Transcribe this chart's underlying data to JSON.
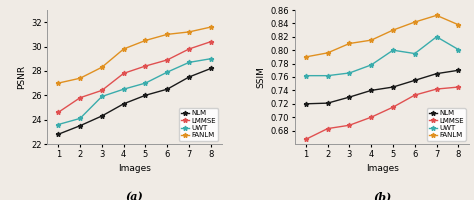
{
  "x": [
    1,
    2,
    3,
    4,
    5,
    6,
    7,
    8
  ],
  "psnr": {
    "NLM": [
      22.8,
      23.5,
      24.3,
      25.3,
      26.0,
      26.5,
      27.5,
      28.2
    ],
    "LMMSE": [
      24.6,
      25.8,
      26.4,
      27.8,
      28.4,
      28.9,
      29.8,
      30.4
    ],
    "UWT": [
      23.6,
      24.1,
      25.9,
      26.5,
      27.0,
      27.9,
      28.7,
      29.0
    ],
    "FANLM": [
      27.0,
      27.4,
      28.3,
      29.8,
      30.5,
      31.0,
      31.2,
      31.6
    ]
  },
  "ssim": {
    "NLM": [
      0.72,
      0.721,
      0.73,
      0.74,
      0.745,
      0.755,
      0.765,
      0.77
    ],
    "LMMSE": [
      0.667,
      0.683,
      0.688,
      0.7,
      0.715,
      0.733,
      0.742,
      0.745
    ],
    "UWT": [
      0.762,
      0.762,
      0.766,
      0.778,
      0.8,
      0.795,
      0.82,
      0.801
    ],
    "FANLM": [
      0.79,
      0.796,
      0.81,
      0.815,
      0.83,
      0.842,
      0.852,
      0.838
    ]
  },
  "colors": {
    "NLM": "#1a1a1a",
    "LMMSE": "#e05050",
    "UWT": "#3aacac",
    "FANLM": "#e09020"
  },
  "marker": "*",
  "psnr_ylim": [
    22,
    33
  ],
  "psnr_yticks": [
    22,
    24,
    26,
    28,
    30,
    32
  ],
  "ssim_ylim": [
    0.66,
    0.86
  ],
  "ssim_yticks": [
    0.68,
    0.7,
    0.72,
    0.74,
    0.76,
    0.78,
    0.8,
    0.82,
    0.84,
    0.86
  ],
  "xlabel": "Images",
  "psnr_ylabel": "PSNR",
  "ssim_ylabel": "SSIM",
  "label_a": "(a)",
  "label_b": "(b)",
  "legend_order": [
    "NLM",
    "LMMSE",
    "UWT",
    "FANLM"
  ],
  "background_color": "#f0ebe5"
}
